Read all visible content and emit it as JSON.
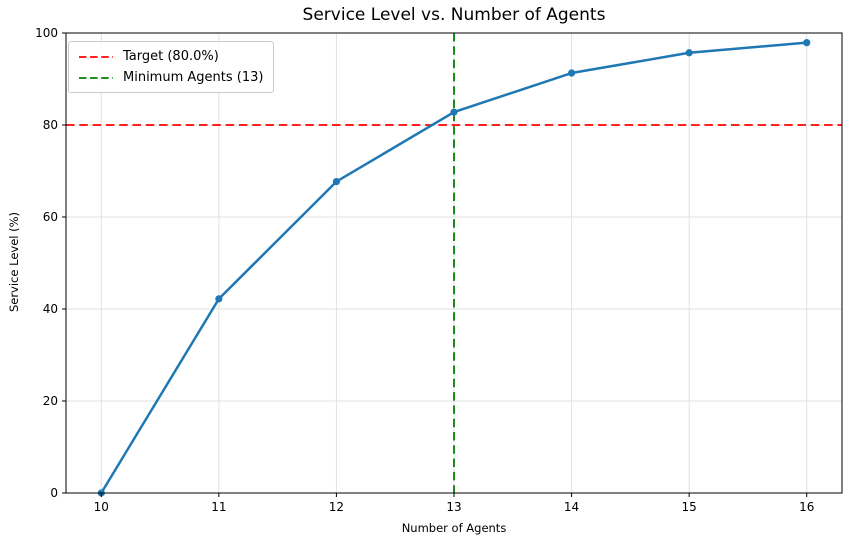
{
  "chart_data": {
    "type": "line",
    "title": "Service Level vs. Number of Agents",
    "xlabel": "Number of Agents",
    "ylabel": "Service Level (%)",
    "x": [
      10,
      11,
      12,
      13,
      14,
      15,
      16
    ],
    "values": [
      0,
      42.2,
      67.7,
      82.8,
      91.3,
      95.7,
      97.9
    ],
    "series_name": "Service Level",
    "series_color": "#1f77b4",
    "xlim": [
      9.7,
      16.3
    ],
    "ylim": [
      0,
      100
    ],
    "x_ticks": [
      10,
      11,
      12,
      13,
      14,
      15,
      16
    ],
    "y_ticks": [
      0,
      20,
      40,
      60,
      80,
      100
    ],
    "grid": true,
    "legend_position": "upper left",
    "reference_lines": [
      {
        "orientation": "horizontal",
        "value": 80,
        "color": "#ff0000",
        "style": "dashed",
        "label": "Target (80.0%)"
      },
      {
        "orientation": "vertical",
        "value": 13,
        "color": "#008000",
        "style": "dashed",
        "label": "Minimum Agents (13)"
      }
    ],
    "legend": [
      {
        "label": "Target (80.0%)",
        "color": "#ff0000"
      },
      {
        "label": "Minimum Agents (13)",
        "color": "#008000"
      }
    ]
  }
}
